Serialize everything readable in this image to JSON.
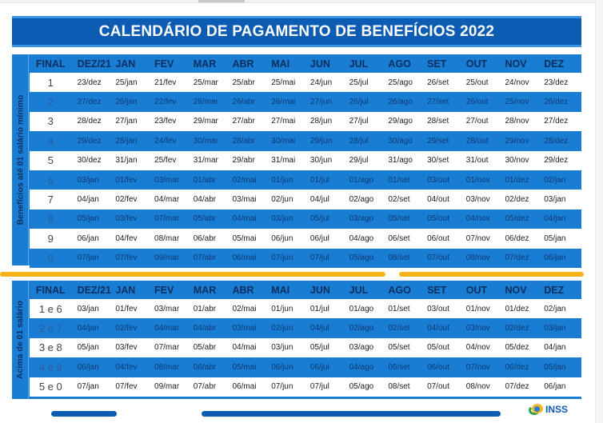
{
  "title": "CALENDÁRIO DE PAGAMENTO DE BENEFÍCIOS 2022",
  "colors": {
    "title_blue": "#0c5cb3",
    "row_blue": "#1a7dd4",
    "accent_orange": "#f7b21b",
    "header_text": "#0b2f5e"
  },
  "columns": [
    "FINAL",
    "DEZ/21",
    "JAN",
    "FEV",
    "MAR",
    "ABR",
    "MAI",
    "JUN",
    "JUL",
    "AGO",
    "SET",
    "OUT",
    "NOV",
    "DEZ"
  ],
  "section1": {
    "side_label": "Benefícios até 01 salário mínimo",
    "rows": [
      [
        "1",
        "23/dez",
        "25/jan",
        "21/fev",
        "25/mar",
        "25/abr",
        "25/mai",
        "24/jun",
        "25/jul",
        "25/ago",
        "26/set",
        "25/out",
        "24/nov",
        "23/dez"
      ],
      [
        "2",
        "27/dez",
        "26/jan",
        "22/fev",
        "28/mar",
        "26/abr",
        "26/mai",
        "27/jun",
        "26/jul",
        "26/ago",
        "27/set",
        "26/out",
        "25/nov",
        "26/dez"
      ],
      [
        "3",
        "28/dez",
        "27/jan",
        "23/fev",
        "29/mar",
        "27/abr",
        "27/mai",
        "28/jun",
        "27/jul",
        "29/ago",
        "28/set",
        "27/out",
        "28/nov",
        "27/dez"
      ],
      [
        "4",
        "29/dez",
        "28/jan",
        "24/fev",
        "30/mar",
        "28/abr",
        "30/mai",
        "29/jun",
        "28/jul",
        "30/ago",
        "29/set",
        "28/out",
        "29/nov",
        "28/dez"
      ],
      [
        "5",
        "30/dez",
        "31/jan",
        "25/fev",
        "31/mar",
        "29/abr",
        "31/mai",
        "30/jun",
        "29/jul",
        "31/ago",
        "30/set",
        "31/out",
        "30/nov",
        "29/dez"
      ],
      [
        "6",
        "03/jan",
        "01/fev",
        "03/mar",
        "01/abr",
        "02/mai",
        "01/jun",
        "01/jul",
        "01/ago",
        "01/set",
        "03/out",
        "01/nov",
        "01/dez",
        "02/jan"
      ],
      [
        "7",
        "04/jan",
        "02/fev",
        "04/mar",
        "04/abr",
        "03/mai",
        "02/jun",
        "04/jul",
        "02/ago",
        "02/set",
        "04/out",
        "03/nov",
        "02/dez",
        "03/jan"
      ],
      [
        "8",
        "05/jan",
        "03/fev",
        "07/mar",
        "05/abr",
        "04/mai",
        "03/jun",
        "05/jul",
        "03/ago",
        "05/set",
        "05/out",
        "04/nov",
        "05/dez",
        "04/jan"
      ],
      [
        "9",
        "06/jan",
        "04/fev",
        "08/mar",
        "06/abr",
        "05/mai",
        "06/jun",
        "06/jul",
        "04/ago",
        "06/set",
        "06/out",
        "07/nov",
        "06/dez",
        "05/jan"
      ],
      [
        "0",
        "07/jan",
        "07/fev",
        "09/mar",
        "07/abr",
        "06/mai",
        "07/jun",
        "07/jul",
        "05/ago",
        "08/set",
        "07/out",
        "08/nov",
        "07/dez",
        "06/jan"
      ]
    ]
  },
  "section2": {
    "side_label": "Acima de 01 salário",
    "rows": [
      [
        "1 e 6",
        "03/jan",
        "01/fev",
        "03/mar",
        "01/abr",
        "02/mai",
        "01/jun",
        "01/jul",
        "01/ago",
        "01/set",
        "03/out",
        "01/nov",
        "01/dez",
        "02/jan"
      ],
      [
        "2 e 7",
        "04/jan",
        "02/fev",
        "04/mar",
        "04/abr",
        "03/mai",
        "02/jun",
        "04/jul",
        "02/ago",
        "02/set",
        "04/out",
        "03/nov",
        "02/dez",
        "03/jan"
      ],
      [
        "3 e 8",
        "05/jan",
        "03/fev",
        "07/mar",
        "05/abr",
        "04/mai",
        "03/jun",
        "05/jul",
        "03/ago",
        "05/set",
        "05/out",
        "04/nov",
        "05/dez",
        "04/jan"
      ],
      [
        "4 e 9",
        "06/jan",
        "04/fev",
        "08/mar",
        "06/abr",
        "05/mai",
        "06/jun",
        "06/jul",
        "04/ago",
        "06/set",
        "06/out",
        "07/nov",
        "06/dez",
        "05/jan"
      ],
      [
        "5 e 0",
        "07/jan",
        "07/fev",
        "09/mar",
        "07/abr",
        "06/mai",
        "07/jun",
        "07/jul",
        "05/ago",
        "08/set",
        "07/out",
        "08/nov",
        "07/dez",
        "06/jan"
      ]
    ]
  },
  "logo": {
    "text": "INSS",
    "icon": "inss-logo-icon"
  }
}
